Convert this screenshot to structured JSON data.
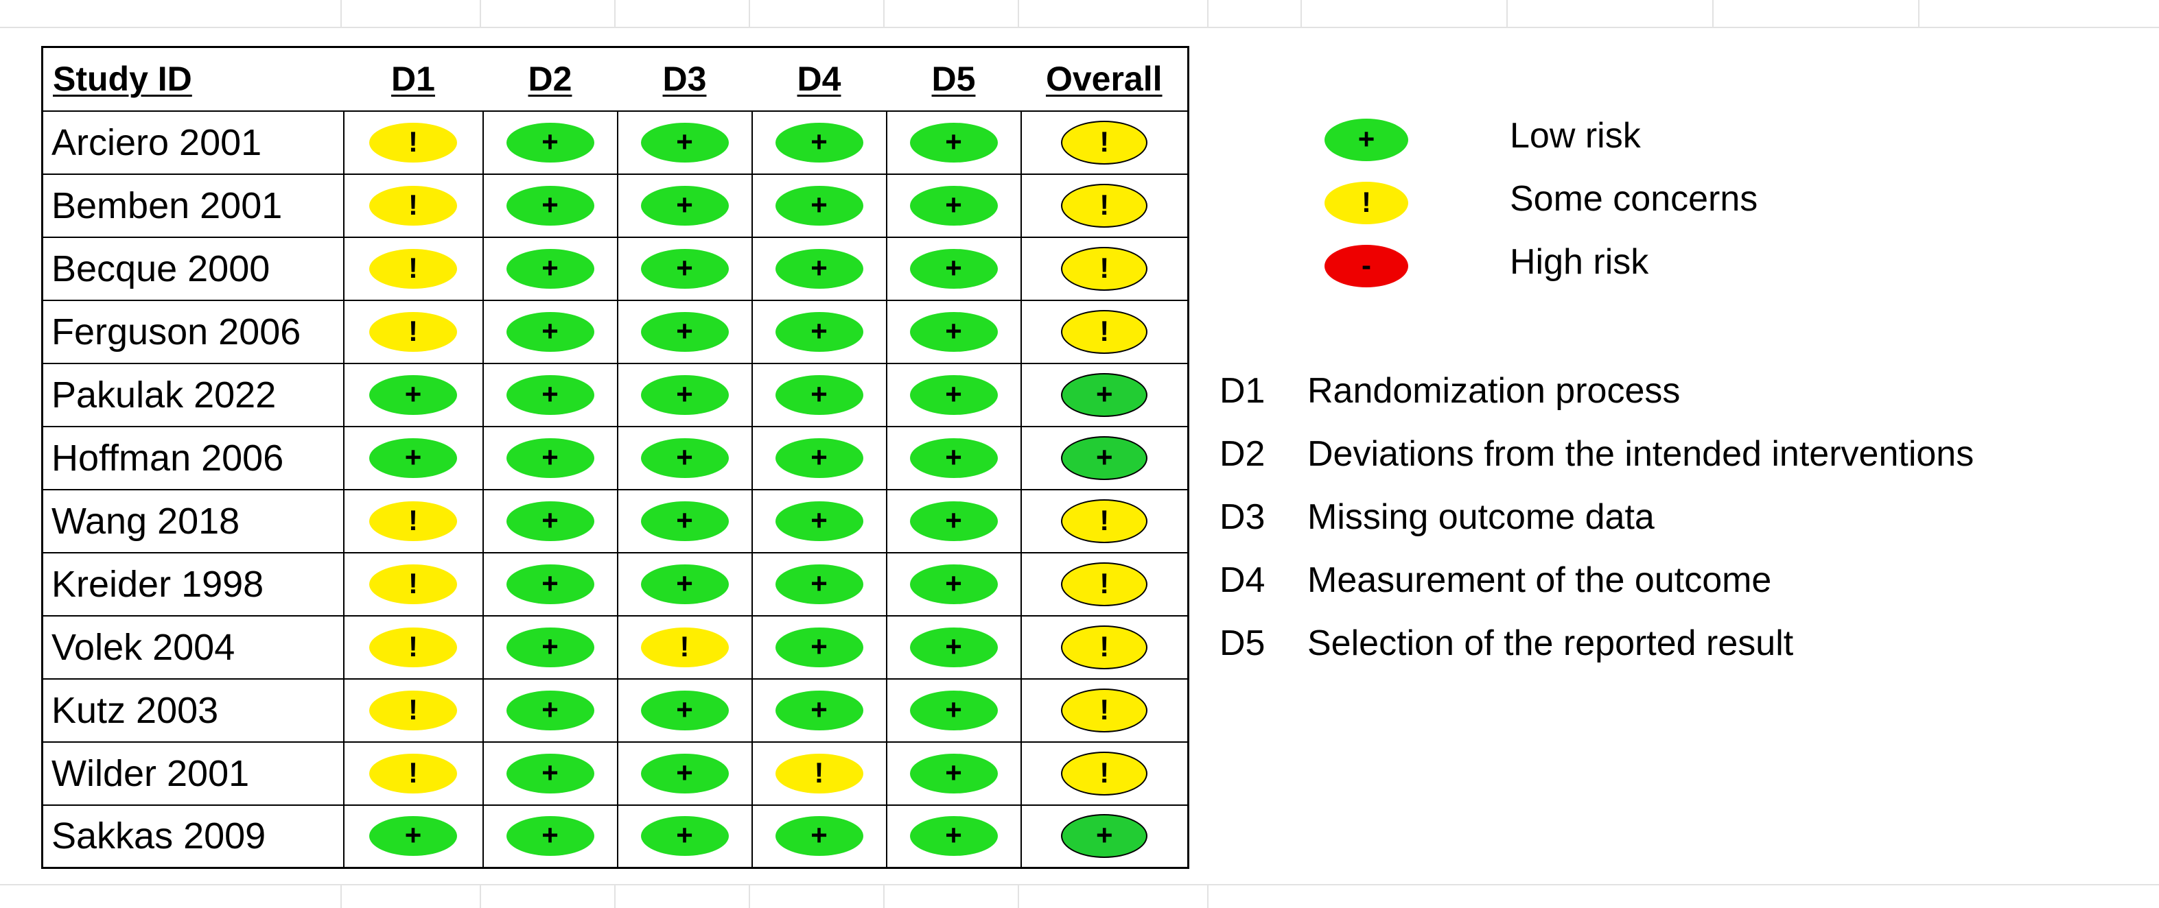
{
  "table": {
    "headers": {
      "study": "Study ID",
      "d1": "D1",
      "d2": "D2",
      "d3": "D3",
      "d4": "D4",
      "d5": "D5",
      "overall": "Overall"
    },
    "rows": [
      {
        "study": "Arciero 2001",
        "d1": "some",
        "d2": "low",
        "d3": "low",
        "d4": "low",
        "d5": "low",
        "overall": "some"
      },
      {
        "study": "Bemben 2001",
        "d1": "some",
        "d2": "low",
        "d3": "low",
        "d4": "low",
        "d5": "low",
        "overall": "some"
      },
      {
        "study": "Becque 2000",
        "d1": "some",
        "d2": "low",
        "d3": "low",
        "d4": "low",
        "d5": "low",
        "overall": "some"
      },
      {
        "study": "Ferguson 2006",
        "d1": "some",
        "d2": "low",
        "d3": "low",
        "d4": "low",
        "d5": "low",
        "overall": "some"
      },
      {
        "study": "Pakulak 2022",
        "d1": "low",
        "d2": "low",
        "d3": "low",
        "d4": "low",
        "d5": "low",
        "overall": "low"
      },
      {
        "study": "Hoffman 2006",
        "d1": "low",
        "d2": "low",
        "d3": "low",
        "d4": "low",
        "d5": "low",
        "overall": "low"
      },
      {
        "study": "Wang 2018",
        "d1": "some",
        "d2": "low",
        "d3": "low",
        "d4": "low",
        "d5": "low",
        "overall": "some"
      },
      {
        "study": "Kreider 1998",
        "d1": "some",
        "d2": "low",
        "d3": "low",
        "d4": "low",
        "d5": "low",
        "overall": "some"
      },
      {
        "study": "Volek 2004",
        "d1": "some",
        "d2": "low",
        "d3": "some",
        "d4": "low",
        "d5": "low",
        "overall": "some"
      },
      {
        "study": "Kutz 2003",
        "d1": "some",
        "d2": "low",
        "d3": "low",
        "d4": "low",
        "d5": "low",
        "overall": "some"
      },
      {
        "study": "Wilder 2001",
        "d1": "some",
        "d2": "low",
        "d3": "low",
        "d4": "some",
        "d5": "low",
        "overall": "some"
      },
      {
        "study": "Sakkas 2009",
        "d1": "low",
        "d2": "low",
        "d3": "low",
        "d4": "low",
        "d5": "low",
        "overall": "low"
      }
    ]
  },
  "judgements": {
    "low": {
      "symbol": "+",
      "color": "#22dd22",
      "label": "Low risk"
    },
    "some": {
      "symbol": "!",
      "color": "#ffee00",
      "label": "Some concerns"
    },
    "high": {
      "symbol": "-",
      "color": "#ee0000",
      "label": "High risk"
    }
  },
  "legend": {
    "order": [
      "low",
      "some",
      "high"
    ]
  },
  "domains": [
    {
      "key": "D1",
      "description": "Randomization process"
    },
    {
      "key": "D2",
      "description": "Deviations from the intended interventions"
    },
    {
      "key": "D3",
      "description": "Missing outcome data"
    },
    {
      "key": "D4",
      "description": "Measurement of the outcome"
    },
    {
      "key": "D5",
      "description": "Selection of the reported result"
    }
  ]
}
